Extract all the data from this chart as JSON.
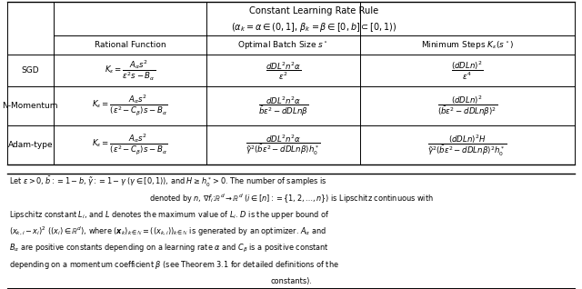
{
  "title_line1": "Constant Learning Rate Rule",
  "title_line2": "$(\\alpha_k = \\alpha \\in (0,1],\\, \\beta_k = \\beta \\in [0,b] \\subset [0,1))$",
  "col_headers": [
    "Rational Function",
    "Optimal Batch Size $s^\\star$",
    "Minimum Steps $K_\\epsilon(s^\\star)$"
  ],
  "row_headers": [
    "SGD",
    "N-Momentum",
    "Adam-type"
  ],
  "rf_col": [
    "$K_\\epsilon = \\dfrac{A_\\alpha s^2}{\\epsilon^2 s - B_\\alpha}$",
    "$K_\\epsilon = \\dfrac{A_\\alpha s^2}{(\\epsilon^2 - C_\\beta)s - B_\\alpha}$",
    "$K_\\epsilon = \\dfrac{A_\\alpha s^2}{(\\epsilon^2 - C_\\beta)s - B_\\alpha}$"
  ],
  "obs_col": [
    "$\\dfrac{dDL^2 n^2 \\alpha}{\\epsilon^2}$",
    "$\\dfrac{dDL^2 n^2 \\alpha}{\\bar{b}\\epsilon^2 - dDLn\\beta}$",
    "$\\dfrac{dDL^2 n^2 \\alpha}{\\tilde{\\gamma}^2(\\bar{b}\\epsilon^2 - dDLn\\beta)h_0^*}$"
  ],
  "ms_col": [
    "$\\dfrac{(dDLn)^2}{\\epsilon^4}$",
    "$\\dfrac{(dDLn)^2}{(\\bar{b}\\epsilon^2 - dDLn\\beta)^2}$",
    "$\\dfrac{(dDLn)^2 H}{\\tilde{\\gamma}^2(\\bar{b}\\epsilon^2 - dDLn\\beta)^2 h_0^*}$"
  ],
  "footnote_lines": [
    "Let $\\epsilon > 0$, $\\bar{b} := 1 - b$, $\\tilde{\\gamma} := 1 - \\gamma$ ($\\gamma \\in [0,1)$), and $H \\geq h_0^* > 0$. The number of samples is",
    "denoted by $n$, $\\nabla f_i\\colon \\mathbb{R}^d \\to \\mathbb{R}^d$ ($i \\in [n] := \\{1, 2, \\ldots, n\\}$) is Lipschitz continuous with",
    "Lipschitz constant $L_i$, and $L$ denotes the maximum value of $L_i$. $D$ is the upper bound of",
    "$(x_{k,i} - x_i)^2$ ($(x_i) \\in \\mathbb{R}^d$), where $(\\boldsymbol{x}_k)_{k \\in \\mathbb{N}} = ((x_{k,i}))_{k \\in \\mathbb{N}}$ is generated by an optimizer. $A_\\alpha$ and",
    "$B_\\alpha$ are positive constants depending on a learning rate $\\alpha$ and $C_\\beta$ is a positive constant",
    "depending on a momentum coefficient $\\beta$ (see Theorem 3.1 for detailed definitions of the",
    "constants)."
  ],
  "footnote_align": [
    "left",
    "center",
    "left",
    "left",
    "left",
    "left",
    "center"
  ]
}
